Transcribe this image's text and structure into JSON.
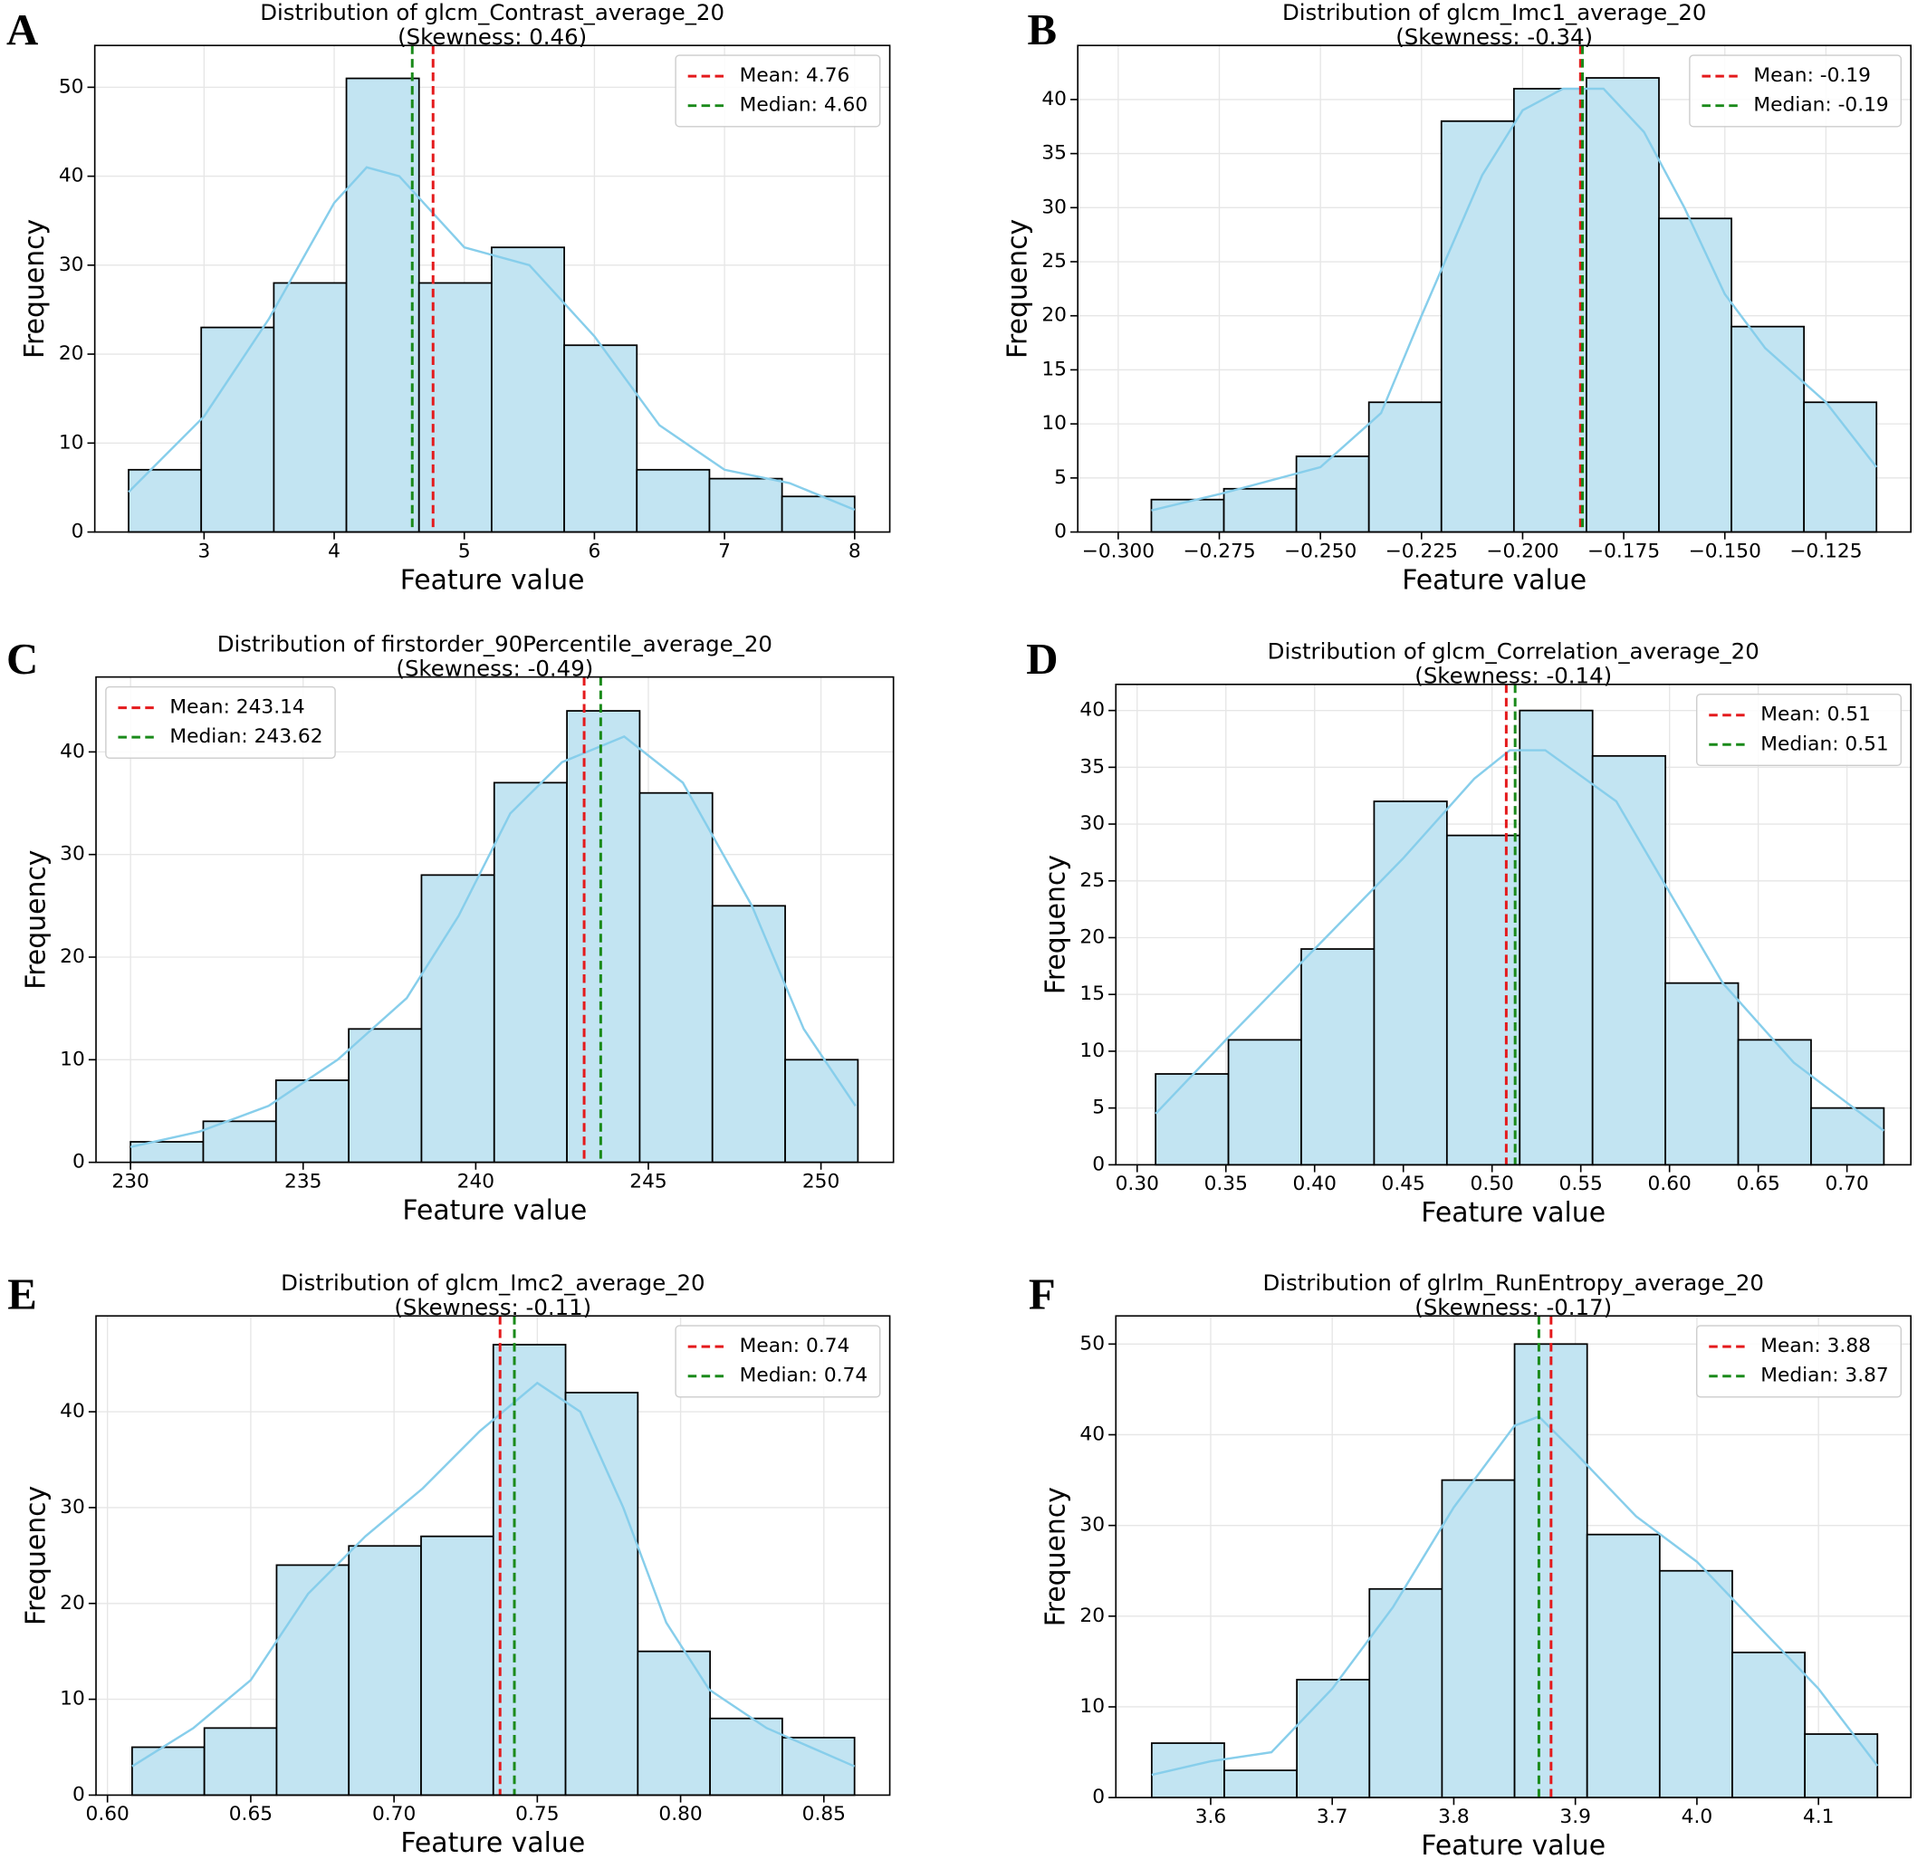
{
  "chart_data": [
    {
      "type": "histogram",
      "panel": "A",
      "title": "Distribution of glcm_Contrast_average_20",
      "subtitle": "(Skewness: 0.46)",
      "xlabel": "Feature value",
      "ylabel": "Frequency",
      "bins": [
        2.42,
        2.978,
        3.536,
        4.094,
        4.652,
        5.21,
        5.768,
        6.326,
        6.884,
        7.442,
        8.0
      ],
      "values": [
        7,
        23,
        28,
        51,
        28,
        32,
        21,
        7,
        6,
        4
      ],
      "color": "#c2e4f2",
      "edgecolor": "#000000",
      "xlim": [
        2.16,
        8.27
      ],
      "ylim": [
        0,
        54.7
      ],
      "xticks": [
        3,
        4,
        5,
        6,
        7,
        8
      ],
      "yticks": [
        0,
        10,
        20,
        30,
        40,
        50
      ],
      "grid": true,
      "legend": "upper right",
      "kde": {
        "color": "#87ceeb",
        "x": [
          2.42,
          3.0,
          3.5,
          4.0,
          4.25,
          4.5,
          4.75,
          5.0,
          5.5,
          6.0,
          6.5,
          7.0,
          7.5,
          8.0
        ],
        "values": [
          4.5,
          13,
          24,
          37,
          41,
          40,
          36,
          32,
          30,
          22,
          12,
          7,
          5.5,
          2.5
        ]
      },
      "vlines": [
        {
          "name": "Mean: 4.76",
          "value": 4.76,
          "color": "#e41a1c"
        },
        {
          "name": "Median: 4.60",
          "value": 4.6,
          "color": "#1a8a1a"
        }
      ]
    },
    {
      "type": "histogram",
      "panel": "B",
      "title": "Distribution of glcm_Imc1_average_20",
      "subtitle": "(Skewness: -0.34)",
      "xlabel": "Feature value",
      "ylabel": "Frequency",
      "bins": [
        -0.2918,
        -0.27387,
        -0.25594,
        -0.23801,
        -0.22008,
        -0.20215,
        -0.18422,
        -0.16629,
        -0.14836,
        -0.13043,
        -0.1125
      ],
      "values": [
        3,
        4,
        7,
        12,
        38,
        41,
        42,
        29,
        19,
        12
      ],
      "color": "#c2e4f2",
      "edgecolor": "#000000",
      "xlim": [
        -0.31,
        -0.104
      ],
      "ylim": [
        0,
        45
      ],
      "xticks": [
        {
          "value": -0.3,
          "label": "−0.300"
        },
        {
          "value": -0.275,
          "label": "−0.275"
        },
        {
          "value": -0.25,
          "label": "−0.250"
        },
        {
          "value": -0.225,
          "label": "−0.225"
        },
        {
          "value": -0.2,
          "label": "−0.200"
        },
        {
          "value": -0.175,
          "label": "−0.175"
        },
        {
          "value": -0.15,
          "label": "−0.150"
        },
        {
          "value": -0.125,
          "label": "−0.125"
        }
      ],
      "yticks": [
        0,
        5,
        10,
        15,
        20,
        25,
        30,
        35,
        40
      ],
      "grid": true,
      "legend": "upper right",
      "kde": {
        "color": "#87ceeb",
        "x": [
          -0.2918,
          -0.275,
          -0.25,
          -0.235,
          -0.225,
          -0.21,
          -0.2,
          -0.19,
          -0.18,
          -0.17,
          -0.16,
          -0.15,
          -0.14,
          -0.125,
          -0.1125
        ],
        "values": [
          2,
          3.5,
          6,
          11,
          20,
          33,
          39,
          41,
          41,
          37,
          30,
          22,
          17,
          12,
          6
        ]
      },
      "vlines": [
        {
          "name": "Mean: -0.19",
          "value": -0.1857,
          "color": "#e41a1c"
        },
        {
          "name": "Median: -0.19",
          "value": -0.1852,
          "color": "#1a8a1a"
        }
      ]
    },
    {
      "type": "histogram",
      "panel": "C",
      "title": "Distribution of firstorder_90Percentile_average_20",
      "subtitle": "(Skewness: -0.49)",
      "xlabel": "Feature value",
      "ylabel": "Frequency",
      "bins": [
        230.0,
        232.107,
        234.214,
        236.321,
        238.428,
        240.535,
        242.642,
        244.749,
        246.856,
        248.963,
        251.07
      ],
      "values": [
        2,
        4,
        8,
        13,
        28,
        37,
        44,
        36,
        25,
        10
      ],
      "color": "#c2e4f2",
      "edgecolor": "#000000",
      "xlim": [
        229.0,
        252.1
      ],
      "ylim": [
        0,
        47.3
      ],
      "xticks": [
        230,
        235,
        240,
        245,
        250
      ],
      "yticks": [
        0,
        10,
        20,
        30,
        40
      ],
      "grid": true,
      "legend": "upper left",
      "kde": {
        "color": "#87ceeb",
        "x": [
          230,
          232,
          234,
          236,
          238,
          239.5,
          241,
          242.5,
          244.3,
          246,
          248,
          249.5,
          251
        ],
        "values": [
          1.5,
          3,
          5.5,
          10,
          16,
          24,
          34,
          39,
          41.5,
          37,
          25,
          13,
          5.5
        ]
      },
      "vlines": [
        {
          "name": "Mean: 243.14",
          "value": 243.14,
          "color": "#e41a1c"
        },
        {
          "name": "Median: 243.62",
          "value": 243.62,
          "color": "#1a8a1a"
        }
      ]
    },
    {
      "type": "histogram",
      "panel": "D",
      "title": "Distribution of glcm_Correlation_average_20",
      "subtitle": "(Skewness: -0.14)",
      "xlabel": "Feature value",
      "ylabel": "Frequency",
      "bins": [
        0.3104,
        0.35144,
        0.39248,
        0.43352,
        0.47456,
        0.5156,
        0.55664,
        0.59768,
        0.63872,
        0.67976,
        0.7208
      ],
      "values": [
        8,
        11,
        19,
        32,
        29,
        40,
        36,
        16,
        11,
        5
      ],
      "color": "#c2e4f2",
      "edgecolor": "#000000",
      "xlim": [
        0.288,
        0.736
      ],
      "ylim": [
        0,
        42.3
      ],
      "xticks": [
        {
          "value": 0.3,
          "label": "0.30"
        },
        0.35,
        {
          "value": 0.4,
          "label": "0.40"
        },
        0.45,
        {
          "value": 0.5,
          "label": "0.50"
        },
        0.55,
        {
          "value": 0.6,
          "label": "0.60"
        },
        0.65,
        {
          "value": 0.7,
          "label": "0.70"
        }
      ],
      "yticks": [
        0,
        5,
        10,
        15,
        20,
        25,
        30,
        35,
        40
      ],
      "grid": true,
      "legend": "upper right",
      "kde": {
        "color": "#87ceeb",
        "x": [
          0.3104,
          0.35,
          0.4,
          0.45,
          0.49,
          0.51,
          0.53,
          0.57,
          0.6,
          0.63,
          0.67,
          0.7208
        ],
        "values": [
          4.5,
          11,
          19,
          27,
          34,
          36.5,
          36.5,
          32,
          24,
          16,
          9,
          3
        ]
      },
      "vlines": [
        {
          "name": "Mean: 0.51",
          "value": 0.508,
          "color": "#e41a1c"
        },
        {
          "name": "Median: 0.51",
          "value": 0.513,
          "color": "#1a8a1a"
        }
      ]
    },
    {
      "type": "histogram",
      "panel": "E",
      "title": "Distribution of glcm_Imc2_average_20",
      "subtitle": "(Skewness: -0.11)",
      "xlabel": "Feature value",
      "ylabel": "Frequency",
      "bins": [
        0.6086,
        0.63381,
        0.65902,
        0.68423,
        0.70944,
        0.73465,
        0.75986,
        0.78507,
        0.81028,
        0.83549,
        0.8607
      ],
      "values": [
        5,
        7,
        24,
        26,
        27,
        47,
        42,
        15,
        8,
        6
      ],
      "color": "#c2e4f2",
      "edgecolor": "#000000",
      "xlim": [
        0.596,
        0.873
      ],
      "ylim": [
        0,
        50
      ],
      "xticks": [
        {
          "value": 0.6,
          "label": "0.60"
        },
        0.65,
        {
          "value": 0.7,
          "label": "0.70"
        },
        0.75,
        {
          "value": 0.8,
          "label": "0.80"
        },
        0.85
      ],
      "yticks": [
        0,
        10,
        20,
        30,
        40
      ],
      "grid": true,
      "legend": "upper right",
      "kde": {
        "color": "#87ceeb",
        "x": [
          0.6086,
          0.63,
          0.65,
          0.67,
          0.69,
          0.71,
          0.73,
          0.75,
          0.765,
          0.78,
          0.795,
          0.81,
          0.83,
          0.8607
        ],
        "values": [
          3,
          7,
          12,
          21,
          27,
          32,
          38,
          43,
          40,
          30,
          18,
          11,
          7,
          3
        ]
      },
      "vlines": [
        {
          "name": "Mean: 0.74",
          "value": 0.737,
          "color": "#e41a1c"
        },
        {
          "name": "Median: 0.74",
          "value": 0.742,
          "color": "#1a8a1a"
        }
      ]
    },
    {
      "type": "histogram",
      "panel": "F",
      "title": "Distribution of glrlm_RunEntropy_average_20",
      "subtitle": "(Skewness: -0.17)",
      "xlabel": "Feature value",
      "ylabel": "Frequency",
      "bins": [
        3.5515,
        3.6112,
        3.6709,
        3.7306,
        3.7903,
        3.85,
        3.9097,
        3.9694,
        4.0291,
        4.0888,
        4.1485
      ],
      "values": [
        6,
        3,
        13,
        23,
        35,
        50,
        29,
        25,
        16,
        7
      ],
      "color": "#c2e4f2",
      "edgecolor": "#000000",
      "xlim": [
        3.522,
        4.176
      ],
      "ylim": [
        0,
        53.1
      ],
      "xticks": [
        3.6,
        3.7,
        3.8,
        3.9,
        {
          "value": 4.0,
          "label": "4.0"
        },
        4.1
      ],
      "yticks": [
        0,
        10,
        20,
        30,
        40,
        50
      ],
      "grid": true,
      "legend": "upper right",
      "kde": {
        "color": "#87ceeb",
        "x": [
          3.5515,
          3.6,
          3.65,
          3.7,
          3.75,
          3.8,
          3.85,
          3.87,
          3.9,
          3.95,
          4.0,
          4.05,
          4.1,
          4.1485
        ],
        "values": [
          2.5,
          4,
          5,
          12,
          21,
          32,
          41,
          42,
          38,
          31,
          26,
          19,
          12,
          3.5
        ]
      },
      "vlines": [
        {
          "name": "Mean: 3.88",
          "value": 3.88,
          "color": "#e41a1c"
        },
        {
          "name": "Median: 3.87",
          "value": 3.87,
          "color": "#1a8a1a"
        }
      ]
    }
  ]
}
